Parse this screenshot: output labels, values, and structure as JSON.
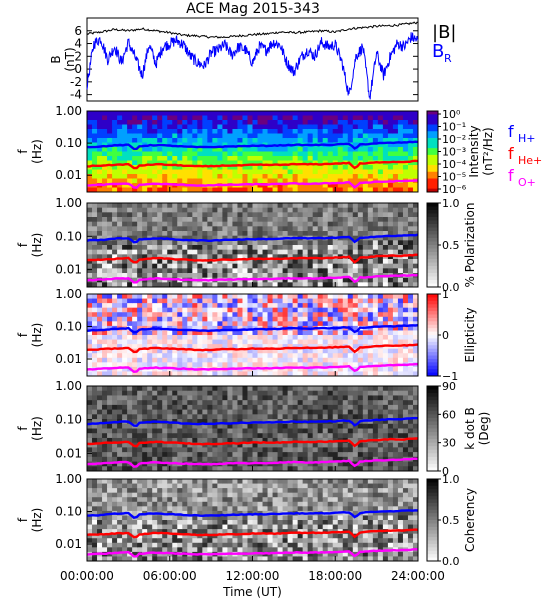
{
  "title": "ACE Mag 2015-343",
  "colors": {
    "btotal": "#000000",
    "bradial": "#0000ff",
    "f_h": "#0000ff",
    "f_he": "#ff0000",
    "f_o": "#ff00ff"
  },
  "chart_data": {
    "type": "multi-panel time series with spectrograms",
    "x": {
      "label": "Time (UT)",
      "ticks": [
        "00:00:00",
        "06:00:00",
        "12:00:00",
        "18:00:00",
        "24:00:00"
      ],
      "range_hours": [
        0,
        24
      ]
    },
    "panels": [
      {
        "id": "field",
        "type": "line",
        "ylabel": "B",
        "yunit": "(nT)",
        "ylim": [
          -5,
          8
        ],
        "yticks": [
          "-4",
          "-2",
          "0",
          "2",
          "4",
          "6"
        ],
        "legend": [
          {
            "label": "|B|",
            "color": "#000000"
          },
          {
            "label": "B",
            "sub": "R",
            "color": "#0000ff"
          }
        ],
        "series": [
          {
            "name": "|B|",
            "x": [
              0,
              1,
              2,
              3,
              4,
              5,
              6,
              7,
              8,
              9,
              10,
              11,
              12,
              13,
              14,
              15,
              16,
              17,
              18,
              19,
              20,
              21,
              22,
              23,
              24
            ],
            "y": [
              5.5,
              5.8,
              6.2,
              6.0,
              6.3,
              6.0,
              5.7,
              5.3,
              5.2,
              5.0,
              5.0,
              5.2,
              5.4,
              5.5,
              5.8,
              5.7,
              5.8,
              6.0,
              5.8,
              6.3,
              6.5,
              6.7,
              6.8,
              7.0,
              7.3
            ]
          },
          {
            "name": "B_R",
            "x": [
              0,
              0.5,
              1,
              1.5,
              2,
              2.5,
              3,
              3.5,
              4,
              4.5,
              5,
              5.5,
              6,
              6.5,
              7,
              7.5,
              8,
              8.5,
              9,
              9.5,
              10,
              10.5,
              11,
              11.5,
              12,
              12.5,
              13,
              13.5,
              14,
              14.5,
              15,
              15.5,
              16,
              16.5,
              17,
              17.5,
              18,
              18.5,
              19,
              19.5,
              20,
              20.5,
              21,
              21.5,
              22,
              22.5,
              23,
              23.5,
              24
            ],
            "y": [
              -2.5,
              4.0,
              4.8,
              1.5,
              3.5,
              1.0,
              4.2,
              1.8,
              -1.0,
              3.8,
              0.8,
              3.5,
              4.0,
              4.5,
              3.8,
              2.0,
              1.0,
              0.5,
              2.5,
              3.0,
              3.8,
              2.2,
              3.5,
              3.0,
              1.0,
              3.5,
              3.0,
              4.2,
              3.8,
              1.0,
              -0.5,
              1.8,
              3.0,
              2.0,
              4.2,
              3.5,
              3.8,
              1.0,
              -4.2,
              2.0,
              3.5,
              -4.5,
              2.5,
              -1.0,
              2.0,
              4.0,
              3.5,
              5.0,
              4.5
            ]
          }
        ]
      },
      {
        "id": "intensity",
        "type": "heatmap",
        "ylabel": "f",
        "yunit": "(Hz)",
        "yscale": "log",
        "ylim": [
          0.003,
          1.0
        ],
        "yticks": [
          "1.00",
          "0.10",
          "0.01"
        ],
        "colorbar": {
          "label": "Intensity",
          "unit": "(nT²/Hz)",
          "ticks": [
            "10⁰",
            "10⁻¹",
            "10⁻²",
            "10⁻³",
            "10⁻⁴",
            "10⁻⁵",
            "10⁻⁶"
          ]
        },
        "gyro_legend": [
          {
            "label": "f",
            "sub": "H+",
            "color": "#0000ff"
          },
          {
            "label": "f",
            "sub": "He+",
            "color": "#ff0000"
          },
          {
            "label": "f",
            "sub": "O+",
            "color": "#ff00ff"
          }
        ]
      },
      {
        "id": "polarization",
        "type": "heatmap",
        "ylabel": "f",
        "yunit": "(Hz)",
        "yscale": "log",
        "ylim": [
          0.003,
          1.0
        ],
        "yticks": [
          "1.00",
          "0.10",
          "0.01"
        ],
        "colorbar": {
          "label": "% Polarization",
          "unit": "",
          "ticks": [
            "1.0",
            "0.5",
            "0.0"
          ]
        }
      },
      {
        "id": "ellipticity",
        "type": "heatmap",
        "ylabel": "f",
        "yunit": "(Hz)",
        "yscale": "log",
        "ylim": [
          0.003,
          1.0
        ],
        "yticks": [
          "1.00",
          "0.10",
          "0.01"
        ],
        "colorbar": {
          "label": "Ellipticity",
          "unit": "",
          "ticks": [
            "1",
            "0",
            "−1"
          ]
        }
      },
      {
        "id": "kdotb",
        "type": "heatmap",
        "ylabel": "f",
        "yunit": "(Hz)",
        "yscale": "log",
        "ylim": [
          0.003,
          1.0
        ],
        "yticks": [
          "1.00",
          "0.10",
          "0.01"
        ],
        "colorbar": {
          "label": "k dot B",
          "unit": "(Deg)",
          "ticks": [
            "90",
            "60",
            "30",
            "0"
          ]
        }
      },
      {
        "id": "coherency",
        "type": "heatmap",
        "ylabel": "f",
        "yunit": "(Hz)",
        "yscale": "log",
        "ylim": [
          0.003,
          1.0
        ],
        "yticks": [
          "1.00",
          "0.10",
          "0.01"
        ],
        "colorbar": {
          "label": "Coherency",
          "unit": "",
          "ticks": [
            "1.0",
            "0.5",
            "0.0"
          ]
        }
      }
    ],
    "gyrofrequencies": {
      "x": [
        0,
        1,
        2,
        3,
        3.5,
        3.8,
        4.5,
        5,
        6,
        7,
        8,
        9,
        10,
        11,
        12,
        13,
        14,
        15,
        16,
        17,
        18,
        19,
        19.5,
        19.7,
        20,
        21,
        22,
        23,
        24
      ],
      "f_H+": [
        0.075,
        0.078,
        0.085,
        0.088,
        0.06,
        0.08,
        0.085,
        0.087,
        0.083,
        0.078,
        0.075,
        0.075,
        0.078,
        0.08,
        0.082,
        0.083,
        0.085,
        0.088,
        0.087,
        0.088,
        0.09,
        0.095,
        0.06,
        0.09,
        0.092,
        0.098,
        0.102,
        0.105,
        0.11
      ],
      "f_He+": [
        0.019,
        0.02,
        0.021,
        0.022,
        0.015,
        0.02,
        0.021,
        0.022,
        0.021,
        0.02,
        0.019,
        0.019,
        0.02,
        0.02,
        0.021,
        0.021,
        0.021,
        0.022,
        0.022,
        0.022,
        0.023,
        0.024,
        0.015,
        0.023,
        0.023,
        0.025,
        0.026,
        0.026,
        0.028
      ],
      "f_O+": [
        0.0048,
        0.005,
        0.0053,
        0.0055,
        0.0038,
        0.005,
        0.0053,
        0.0054,
        0.0052,
        0.005,
        0.0048,
        0.0048,
        0.005,
        0.0051,
        0.0052,
        0.0052,
        0.0053,
        0.0055,
        0.0054,
        0.0055,
        0.0057,
        0.006,
        0.0038,
        0.0058,
        0.0058,
        0.0062,
        0.0064,
        0.0066,
        0.0069
      ]
    }
  }
}
